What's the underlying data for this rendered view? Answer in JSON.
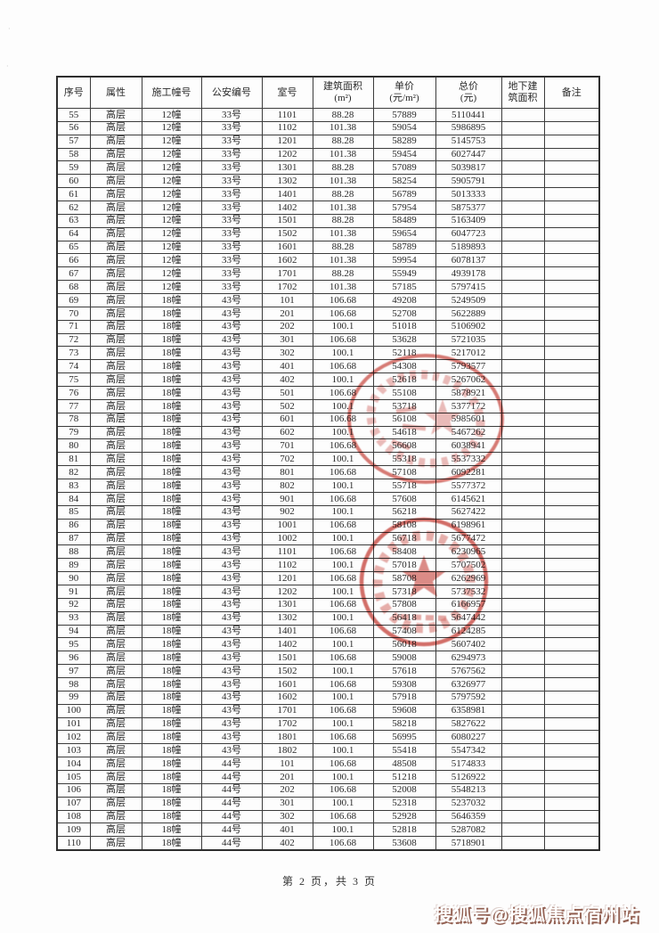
{
  "page": {
    "footer": "第 2 页，共 3 页",
    "watermark": "搜狐号@搜狐焦点宿州站"
  },
  "table": {
    "headers": [
      "序号",
      "属性",
      "施工幢号",
      "公安编号",
      "室号",
      "建筑面积\n(m²)",
      "单价\n(元/m²)",
      "总价\n(元)",
      "地下建\n筑面积",
      "备注"
    ],
    "rows": [
      [
        "55",
        "高层",
        "12幢",
        "33号",
        "1101",
        "88.28",
        "57889",
        "5110441",
        "",
        ""
      ],
      [
        "56",
        "高层",
        "12幢",
        "33号",
        "1102",
        "101.38",
        "59054",
        "5986895",
        "",
        ""
      ],
      [
        "57",
        "高层",
        "12幢",
        "33号",
        "1201",
        "88.28",
        "58289",
        "5145753",
        "",
        ""
      ],
      [
        "58",
        "高层",
        "12幢",
        "33号",
        "1202",
        "101.38",
        "59454",
        "6027447",
        "",
        ""
      ],
      [
        "59",
        "高层",
        "12幢",
        "33号",
        "1301",
        "88.28",
        "57089",
        "5039817",
        "",
        ""
      ],
      [
        "60",
        "高层",
        "12幢",
        "33号",
        "1302",
        "101.38",
        "58254",
        "5905791",
        "",
        ""
      ],
      [
        "61",
        "高层",
        "12幢",
        "33号",
        "1401",
        "88.28",
        "56789",
        "5013333",
        "",
        ""
      ],
      [
        "62",
        "高层",
        "12幢",
        "33号",
        "1402",
        "101.38",
        "57954",
        "5875377",
        "",
        ""
      ],
      [
        "63",
        "高层",
        "12幢",
        "33号",
        "1501",
        "88.28",
        "58489",
        "5163409",
        "",
        ""
      ],
      [
        "64",
        "高层",
        "12幢",
        "33号",
        "1502",
        "101.38",
        "59654",
        "6047723",
        "",
        ""
      ],
      [
        "65",
        "高层",
        "12幢",
        "33号",
        "1601",
        "88.28",
        "58789",
        "5189893",
        "",
        ""
      ],
      [
        "66",
        "高层",
        "12幢",
        "33号",
        "1602",
        "101.38",
        "59954",
        "6078137",
        "",
        ""
      ],
      [
        "67",
        "高层",
        "12幢",
        "33号",
        "1701",
        "88.28",
        "55949",
        "4939178",
        "",
        ""
      ],
      [
        "68",
        "高层",
        "12幢",
        "33号",
        "1702",
        "101.38",
        "57185",
        "5797415",
        "",
        ""
      ],
      [
        "69",
        "高层",
        "18幢",
        "43号",
        "101",
        "106.68",
        "49208",
        "5249509",
        "",
        ""
      ],
      [
        "70",
        "高层",
        "18幢",
        "43号",
        "201",
        "106.68",
        "52708",
        "5622889",
        "",
        ""
      ],
      [
        "71",
        "高层",
        "18幢",
        "43号",
        "202",
        "100.1",
        "51018",
        "5106902",
        "",
        ""
      ],
      [
        "72",
        "高层",
        "18幢",
        "43号",
        "301",
        "106.68",
        "53628",
        "5721035",
        "",
        ""
      ],
      [
        "73",
        "高层",
        "18幢",
        "43号",
        "302",
        "100.1",
        "52118",
        "5217012",
        "",
        ""
      ],
      [
        "74",
        "高层",
        "18幢",
        "43号",
        "401",
        "106.68",
        "54308",
        "5793577",
        "",
        ""
      ],
      [
        "75",
        "高层",
        "18幢",
        "43号",
        "402",
        "100.1",
        "52618",
        "5267062",
        "",
        ""
      ],
      [
        "76",
        "高层",
        "18幢",
        "43号",
        "501",
        "106.68",
        "55108",
        "5878921",
        "",
        ""
      ],
      [
        "77",
        "高层",
        "18幢",
        "43号",
        "502",
        "100.1",
        "53718",
        "5377172",
        "",
        ""
      ],
      [
        "78",
        "高层",
        "18幢",
        "43号",
        "601",
        "106.68",
        "56108",
        "5985601",
        "",
        ""
      ],
      [
        "79",
        "高层",
        "18幢",
        "43号",
        "602",
        "100.1",
        "54618",
        "5467262",
        "",
        ""
      ],
      [
        "80",
        "高层",
        "18幢",
        "43号",
        "701",
        "106.68",
        "56608",
        "6038941",
        "",
        ""
      ],
      [
        "81",
        "高层",
        "18幢",
        "43号",
        "702",
        "100.1",
        "55318",
        "5537332",
        "",
        ""
      ],
      [
        "82",
        "高层",
        "18幢",
        "43号",
        "801",
        "106.68",
        "57108",
        "6092281",
        "",
        ""
      ],
      [
        "83",
        "高层",
        "18幢",
        "43号",
        "802",
        "100.1",
        "55718",
        "5577372",
        "",
        ""
      ],
      [
        "84",
        "高层",
        "18幢",
        "43号",
        "901",
        "106.68",
        "57608",
        "6145621",
        "",
        ""
      ],
      [
        "85",
        "高层",
        "18幢",
        "43号",
        "902",
        "100.1",
        "56218",
        "5627422",
        "",
        ""
      ],
      [
        "86",
        "高层",
        "18幢",
        "43号",
        "1001",
        "106.68",
        "58108",
        "6198961",
        "",
        ""
      ],
      [
        "87",
        "高层",
        "18幢",
        "43号",
        "1002",
        "100.1",
        "56718",
        "5677472",
        "",
        ""
      ],
      [
        "88",
        "高层",
        "18幢",
        "43号",
        "1101",
        "106.68",
        "58408",
        "6230965",
        "",
        ""
      ],
      [
        "89",
        "高层",
        "18幢",
        "43号",
        "1102",
        "100.1",
        "57018",
        "5707502",
        "",
        ""
      ],
      [
        "90",
        "高层",
        "18幢",
        "43号",
        "1201",
        "106.68",
        "58708",
        "6262969",
        "",
        ""
      ],
      [
        "91",
        "高层",
        "18幢",
        "43号",
        "1202",
        "100.1",
        "57318",
        "5737532",
        "",
        ""
      ],
      [
        "92",
        "高层",
        "18幢",
        "43号",
        "1301",
        "106.68",
        "57808",
        "6166957",
        "",
        ""
      ],
      [
        "93",
        "高层",
        "18幢",
        "43号",
        "1302",
        "100.1",
        "56418",
        "5647442",
        "",
        ""
      ],
      [
        "94",
        "高层",
        "18幢",
        "43号",
        "1401",
        "106.68",
        "57408",
        "6124285",
        "",
        ""
      ],
      [
        "95",
        "高层",
        "18幢",
        "43号",
        "1402",
        "100.1",
        "56018",
        "5607402",
        "",
        ""
      ],
      [
        "96",
        "高层",
        "18幢",
        "43号",
        "1501",
        "106.68",
        "59008",
        "6294973",
        "",
        ""
      ],
      [
        "97",
        "高层",
        "18幢",
        "43号",
        "1502",
        "100.1",
        "57618",
        "5767562",
        "",
        ""
      ],
      [
        "98",
        "高层",
        "18幢",
        "43号",
        "1601",
        "106.68",
        "59308",
        "6326977",
        "",
        ""
      ],
      [
        "99",
        "高层",
        "18幢",
        "43号",
        "1602",
        "100.1",
        "57918",
        "5797592",
        "",
        ""
      ],
      [
        "100",
        "高层",
        "18幢",
        "43号",
        "1701",
        "106.68",
        "59608",
        "6358981",
        "",
        ""
      ],
      [
        "101",
        "高层",
        "18幢",
        "43号",
        "1702",
        "100.1",
        "58218",
        "5827622",
        "",
        ""
      ],
      [
        "102",
        "高层",
        "18幢",
        "43号",
        "1801",
        "106.68",
        "56995",
        "6080227",
        "",
        ""
      ],
      [
        "103",
        "高层",
        "18幢",
        "43号",
        "1802",
        "100.1",
        "55418",
        "5547342",
        "",
        ""
      ],
      [
        "104",
        "高层",
        "18幢",
        "44号",
        "101",
        "106.68",
        "48508",
        "5174833",
        "",
        ""
      ],
      [
        "105",
        "高层",
        "18幢",
        "44号",
        "201",
        "100.1",
        "51218",
        "5126922",
        "",
        ""
      ],
      [
        "106",
        "高层",
        "18幢",
        "44号",
        "202",
        "106.68",
        "52008",
        "5548213",
        "",
        ""
      ],
      [
        "107",
        "高层",
        "18幢",
        "44号",
        "301",
        "100.1",
        "52318",
        "5237032",
        "",
        ""
      ],
      [
        "108",
        "高层",
        "18幢",
        "44号",
        "302",
        "106.68",
        "52928",
        "5646359",
        "",
        ""
      ],
      [
        "109",
        "高层",
        "18幢",
        "44号",
        "401",
        "100.1",
        "52818",
        "5287082",
        "",
        ""
      ],
      [
        "110",
        "高层",
        "18幢",
        "44号",
        "402",
        "106.68",
        "53608",
        "5718901",
        "",
        ""
      ]
    ]
  },
  "stamps": [
    {
      "name": "red-company-seal-upper"
    },
    {
      "name": "red-company-seal-lower"
    }
  ],
  "colors": {
    "seal_red": "#cd564f",
    "ink": "#2a2a2a",
    "table_border": "#3c3c3c",
    "watermark_text": "#ffffff",
    "watermark_shadow": "#8d584a"
  }
}
